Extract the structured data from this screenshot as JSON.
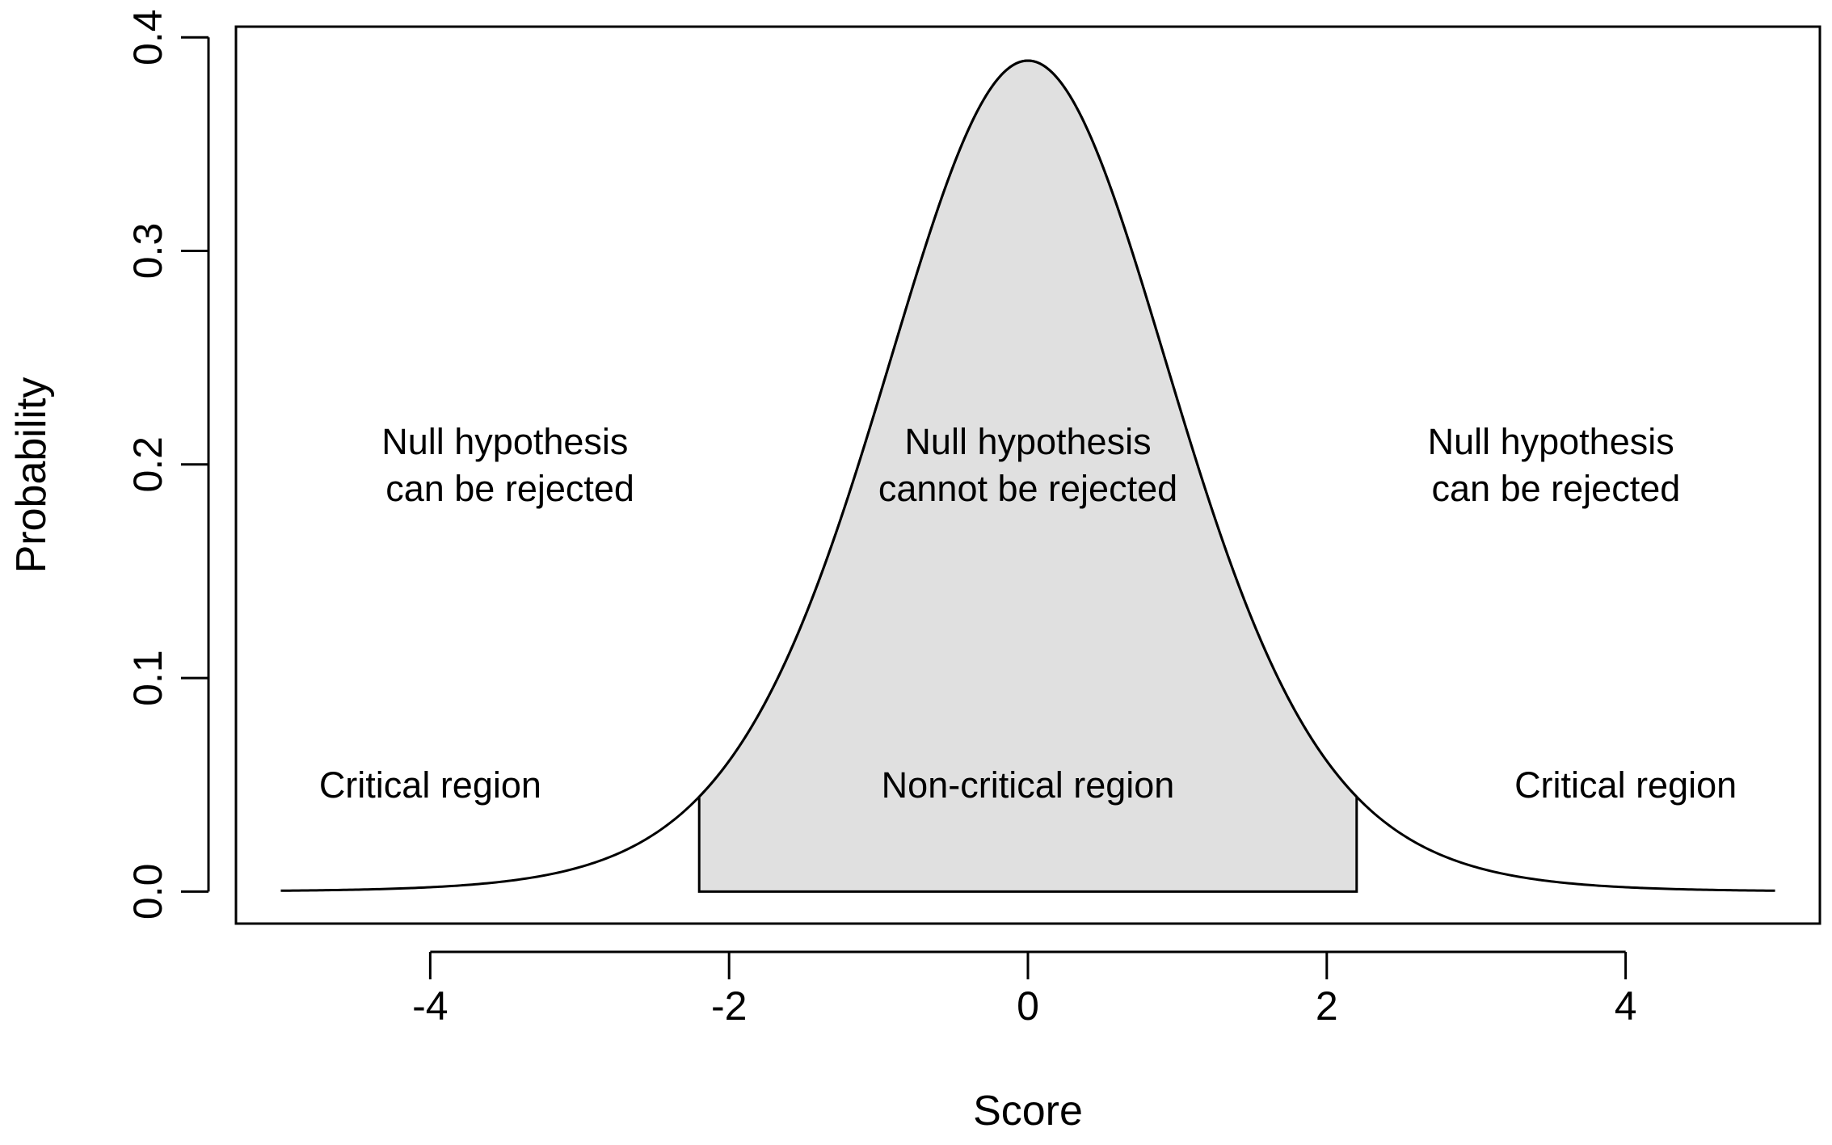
{
  "chart_data": {
    "type": "area",
    "xlabel": "Score",
    "ylabel": "Probability",
    "xlim": [
      -5.3,
      5.3
    ],
    "ylim": [
      -0.015,
      0.405
    ],
    "x_ticks": [
      "-4",
      "-2",
      "0",
      "2",
      "4"
    ],
    "y_ticks": [
      "0.0",
      "0.1",
      "0.2",
      "0.3",
      "0.4"
    ],
    "curve": {
      "distribution": "Student t",
      "df": 10,
      "x_range": [
        -5,
        5
      ],
      "peak": 0.389
    },
    "shaded_region": {
      "x_from": -2.2,
      "x_to": 2.2,
      "fill": "#e0e0e0"
    },
    "annotations": [
      {
        "id": "left-hypothesis",
        "lines": [
          "Null hypothesis",
          " can be rejected"
        ],
        "x": -3.5,
        "y": 0.2
      },
      {
        "id": "center-hypothesis",
        "lines": [
          "Null hypothesis",
          "cannot be rejected"
        ],
        "x": 0,
        "y": 0.2
      },
      {
        "id": "right-hypothesis",
        "lines": [
          "Null hypothesis",
          " can be rejected"
        ],
        "x": 3.5,
        "y": 0.2
      },
      {
        "id": "left-region",
        "lines": [
          "Critical region"
        ],
        "x": -4,
        "y": 0.05
      },
      {
        "id": "center-region",
        "lines": [
          "Non-critical region"
        ],
        "x": 0,
        "y": 0.05
      },
      {
        "id": "right-region",
        "lines": [
          "Critical region"
        ],
        "x": 4,
        "y": 0.05
      }
    ],
    "grid": false,
    "legend": "none"
  }
}
